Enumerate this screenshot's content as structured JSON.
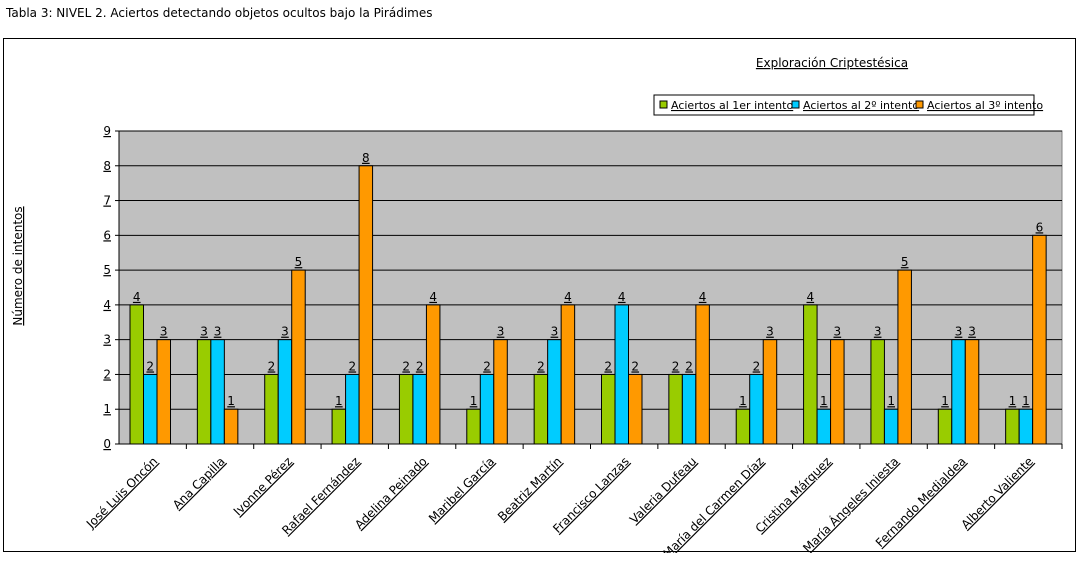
{
  "caption": "Tabla 3: NIVEL 2. Aciertos detectando objetos ocultos bajo la Pirádimes",
  "colors": {
    "plot_bg": "#c0c0c0",
    "series1": "#99cc00",
    "series2": "#00ccff",
    "series3": "#ff9900"
  },
  "chart_data": {
    "type": "bar",
    "title": "Exploración Criptestésica",
    "xlabel": "",
    "ylabel": "Número de intentos",
    "ylim": [
      0,
      9
    ],
    "yticks": [
      "0",
      "1",
      "2",
      "3",
      "4",
      "5",
      "6",
      "7",
      "8",
      "9"
    ],
    "grid": true,
    "legend_position": "top-right",
    "categories": [
      "José Luis Oncón",
      "Ana Capilla",
      "Ivonne Pérez",
      "Rafael Fernández",
      "Adelina Peinado",
      "Maribel García",
      "Beatriz Martín",
      "Francisco Lanzas",
      "Valeria Dufeau",
      "María del Carmen Díaz",
      "Cristina Márquez",
      "María Ángeles Iniesta",
      "Fernando Medialdea",
      "Alberto Valiente"
    ],
    "series": [
      {
        "name": "Aciertos al 1er intento",
        "color": "#99cc00",
        "values": [
          4,
          3,
          2,
          1,
          2,
          1,
          2,
          2,
          2,
          1,
          4,
          3,
          1,
          1
        ]
      },
      {
        "name": "Aciertos al 2º intento",
        "color": "#00ccff",
        "values": [
          2,
          3,
          3,
          2,
          2,
          2,
          3,
          4,
          2,
          2,
          1,
          1,
          3,
          1
        ]
      },
      {
        "name": "Aciertos al 3º intento",
        "color": "#ff9900",
        "values": [
          3,
          1,
          5,
          8,
          4,
          3,
          4,
          2,
          4,
          3,
          3,
          5,
          3,
          6
        ]
      }
    ]
  }
}
